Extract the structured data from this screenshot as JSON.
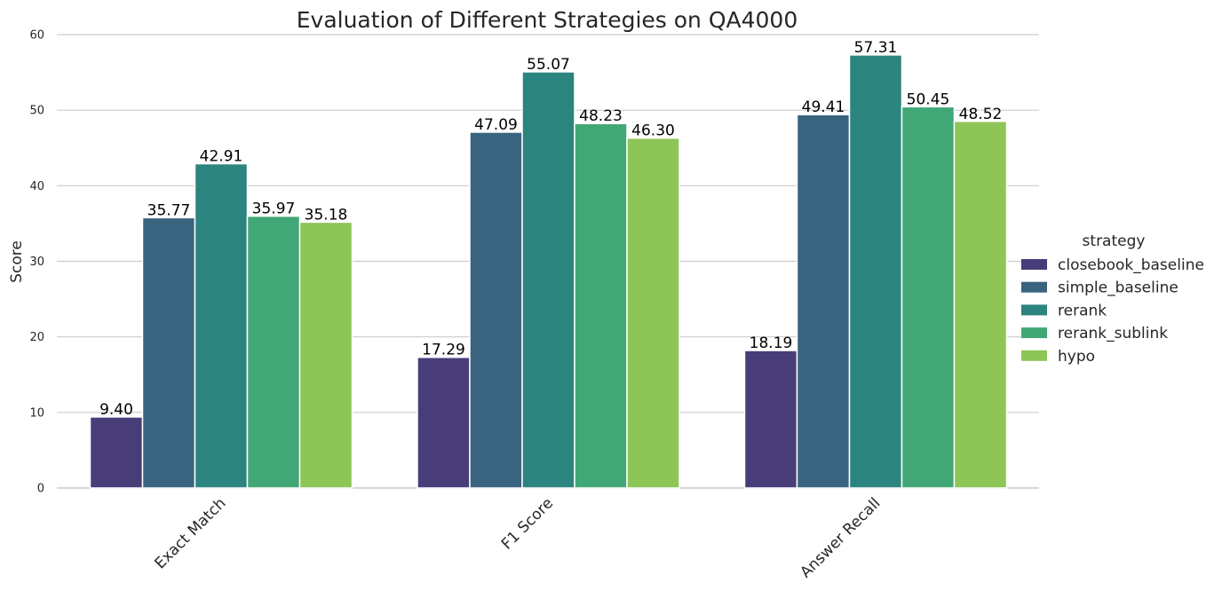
{
  "chart_data": {
    "type": "bar",
    "title": "Evaluation of Different Strategies on QA4000",
    "xlabel": "",
    "ylabel": "Score",
    "ylim": [
      0,
      60
    ],
    "yticks": [
      0,
      10,
      20,
      30,
      40,
      50,
      60
    ],
    "grid": true,
    "categories": [
      "Exact Match",
      "F1 Score",
      "Answer Recall"
    ],
    "legend": {
      "title": "strategy",
      "position": "right"
    },
    "series": [
      {
        "name": "closebook_baseline",
        "color": "#483D79",
        "values": [
          9.4,
          17.29,
          18.19
        ],
        "labels": [
          "9.40",
          "17.29",
          "18.19"
        ]
      },
      {
        "name": "simple_baseline",
        "color": "#3A637F",
        "values": [
          35.77,
          47.09,
          49.41
        ],
        "labels": [
          "35.77",
          "47.09",
          "49.41"
        ]
      },
      {
        "name": "rerank",
        "color": "#2C847F",
        "values": [
          42.91,
          55.07,
          57.31
        ],
        "labels": [
          "42.91",
          "55.07",
          "57.31"
        ]
      },
      {
        "name": "rerank_sublink",
        "color": "#42A776",
        "values": [
          35.97,
          48.23,
          50.45
        ],
        "labels": [
          "35.97",
          "48.23",
          "50.45"
        ]
      },
      {
        "name": "hypo",
        "color": "#8DC556",
        "values": [
          35.18,
          46.3,
          48.52
        ],
        "labels": [
          "35.18",
          "46.30",
          "48.52"
        ]
      }
    ]
  }
}
